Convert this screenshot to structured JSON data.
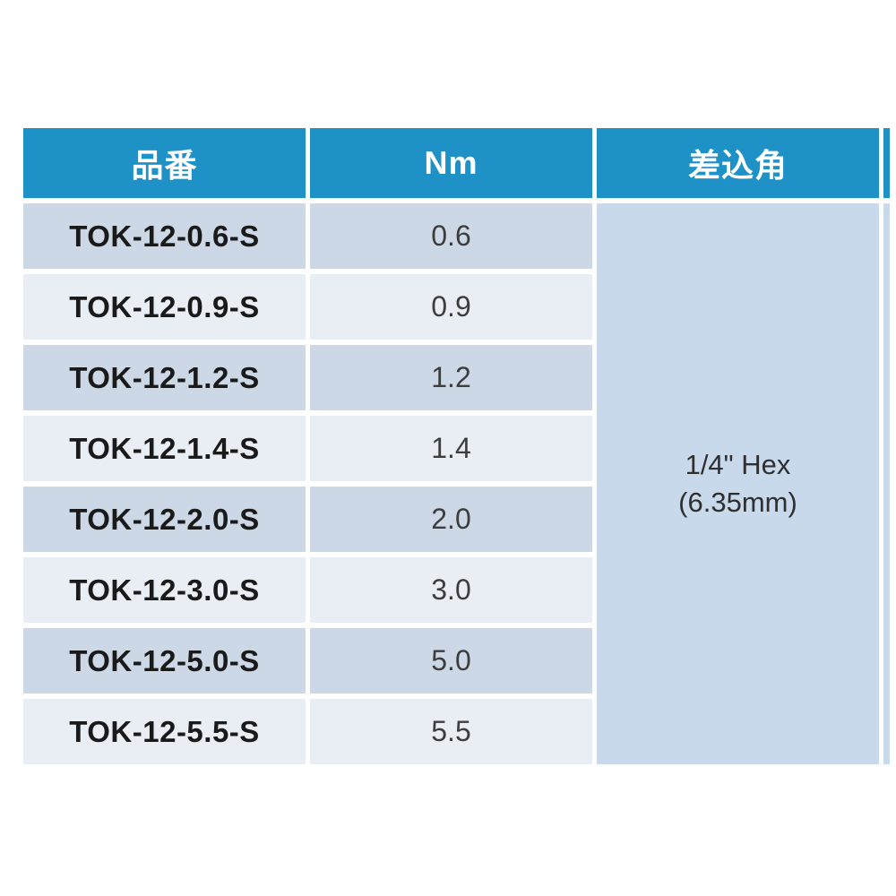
{
  "table": {
    "columns": [
      {
        "label": "品番"
      },
      {
        "label": "Nm"
      },
      {
        "label": "差込角"
      }
    ],
    "rows": [
      {
        "part": "TOK-12-0.6-S",
        "nm": "0.6"
      },
      {
        "part": "TOK-12-0.9-S",
        "nm": "0.9"
      },
      {
        "part": "TOK-12-1.2-S",
        "nm": "1.2"
      },
      {
        "part": "TOK-12-1.4-S",
        "nm": "1.4"
      },
      {
        "part": "TOK-12-2.0-S",
        "nm": "2.0"
      },
      {
        "part": "TOK-12-3.0-S",
        "nm": "3.0"
      },
      {
        "part": "TOK-12-5.0-S",
        "nm": "5.0"
      },
      {
        "part": "TOK-12-5.5-S",
        "nm": "5.5"
      }
    ],
    "merged_drive_cell": {
      "line1": "1/4\" Hex",
      "line2": "(6.35mm)"
    },
    "colors": {
      "header_bg": "#1E91C6",
      "header_text": "#FFFFFF",
      "row_dark": "#CCD8E5",
      "row_light": "#E9EEF5",
      "merged_bg": "#C8D9EB",
      "part_text": "#1A1A1A",
      "value_text": "#3D3D3D",
      "merged_text": "#2F2F2F",
      "page_bg": "#FFFFFF"
    }
  }
}
